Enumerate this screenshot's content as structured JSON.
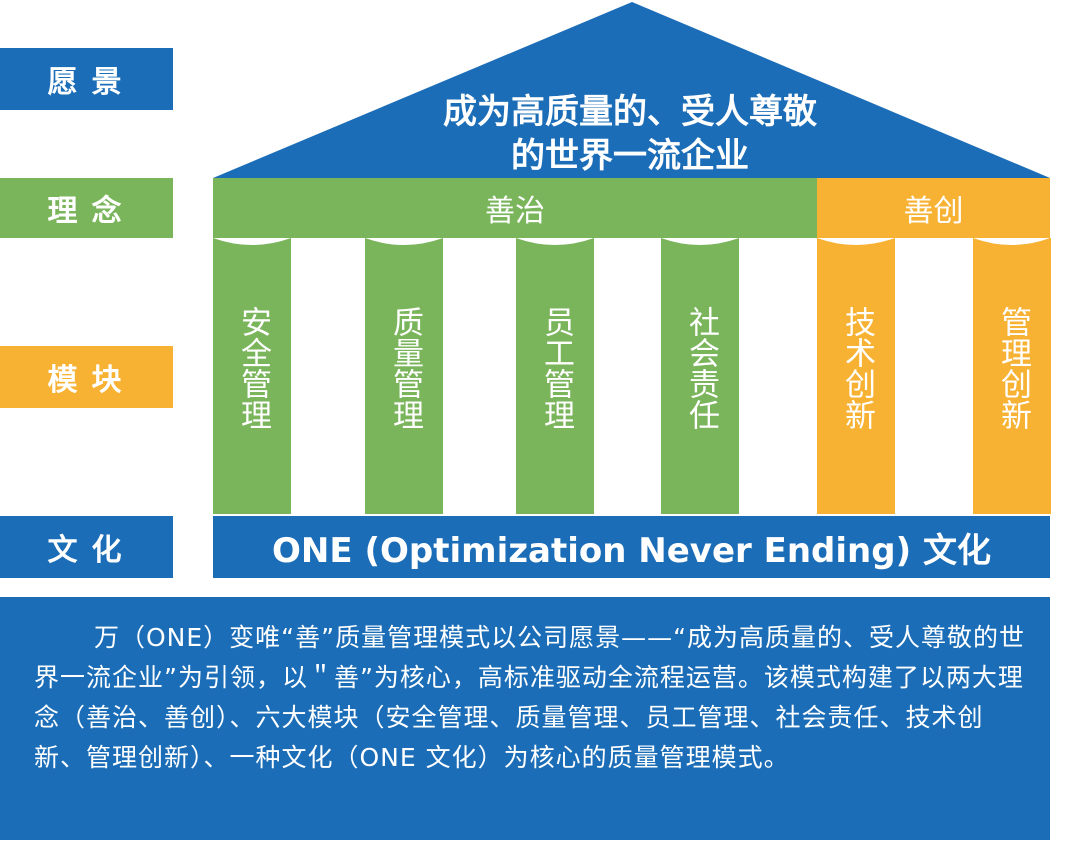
{
  "labels": {
    "vision": "愿景",
    "philosophy": "理念",
    "modules": "模块",
    "culture": "文化"
  },
  "vision_text": {
    "line1": "成为高质量的、受人尊敬",
    "line2": "的世界一流企业"
  },
  "philosophy_bar": {
    "governance": "善治",
    "innovation": "善创"
  },
  "pillars": [
    {
      "text": "安全管理"
    },
    {
      "text": "质量管理"
    },
    {
      "text": "员工管理"
    },
    {
      "text": "社会责任"
    },
    {
      "text": "技术创新"
    },
    {
      "text": "管理创新"
    }
  ],
  "culture_bar": "ONE (Optimization Never Ending) 文化",
  "description": "万（ONE）变唯“善”质量管理模式以公司愿景——“成为高质量的、受人尊敬的世界一流企业”为引领，以＂善”为核心，高标准驱动全流程运营。该模式构建了以两大理念（善治、善创）、六大模块（安全管理、质量管理、员工管理、社会责任、技术创新、管理创新）、一种文化（ONE 文化）为核心的质量管理模式。",
  "colors": {
    "blue": "#1b6db7",
    "green": "#7ab55c",
    "orange": "#f7b233"
  }
}
